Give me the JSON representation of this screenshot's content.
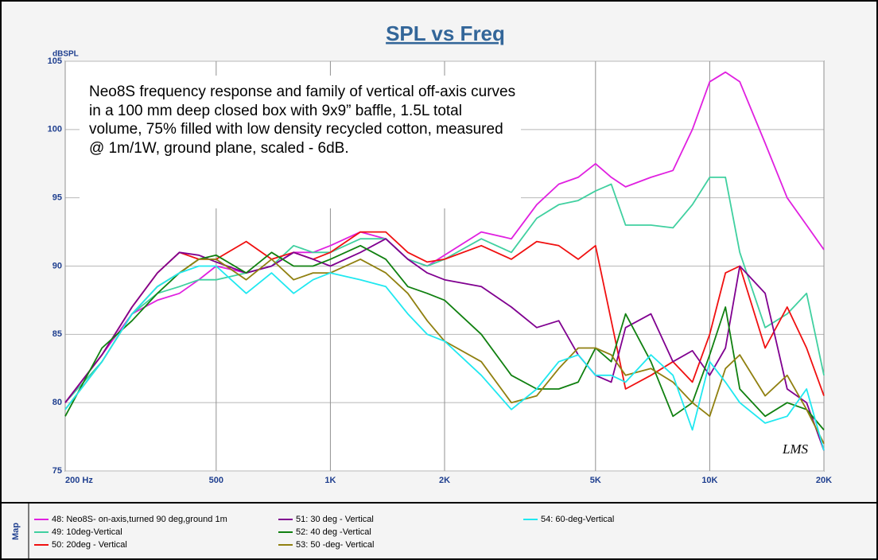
{
  "chart_data": {
    "type": "line",
    "title": "SPL vs Freq",
    "y_label": "dBSPL",
    "annotation": "Neo8S frequency response and family of vertical off-axis curves in a 100 mm deep closed box with 9x9” baffle, 1.5L total volume,  75% filled with low density recycled cotton, measured @ 1m/1W, ground plane, scaled  - 6dB.",
    "watermark": "LMS",
    "legend_title": "Map",
    "x_scale": "log",
    "grid": true,
    "xlim": [
      200,
      20000
    ],
    "xticks": [
      {
        "value": 200,
        "label": "200 Hz"
      },
      500,
      {
        "value": 1000,
        "label": "1K"
      },
      {
        "value": 2000,
        "label": "2K"
      },
      {
        "value": 5000,
        "label": "5K"
      },
      {
        "value": 10000,
        "label": "10K"
      },
      {
        "value": 20000,
        "label": "20K"
      }
    ],
    "ylim": [
      75,
      105
    ],
    "yticks": [
      75,
      80,
      85,
      90,
      95,
      100,
      105
    ],
    "x": [
      200,
      250,
      300,
      350,
      400,
      450,
      500,
      600,
      700,
      800,
      900,
      1000,
      1200,
      1400,
      1600,
      1800,
      2000,
      2500,
      3000,
      3500,
      4000,
      4500,
      5000,
      5500,
      6000,
      7000,
      8000,
      9000,
      10000,
      11000,
      12000,
      14000,
      16000,
      18000,
      20000
    ],
    "series": [
      {
        "name": "48: Neo8S- on-axis,turned 90 deg,ground 1m",
        "color": "#e020e0",
        "values": [
          80,
          83.5,
          86.5,
          87.5,
          88,
          89,
          90,
          89.5,
          90,
          91,
          91,
          91.5,
          92.5,
          92,
          90.5,
          90,
          90.8,
          92.5,
          92,
          94.5,
          96,
          96.5,
          97.5,
          96.5,
          95.8,
          96.5,
          97,
          100,
          103.5,
          104.2,
          103.5,
          99,
          95,
          93,
          91.2
        ]
      },
      {
        "name": "49: 10deg-Vertical",
        "color": "#40d0a0",
        "values": [
          80,
          83,
          86.5,
          88,
          88.5,
          89,
          89,
          89.5,
          90,
          91.5,
          91,
          91,
          92,
          92,
          90.5,
          90,
          90.5,
          92,
          91,
          93.5,
          94.5,
          94.8,
          95.5,
          96,
          93,
          93,
          92.8,
          94.5,
          96.5,
          96.5,
          91,
          85.5,
          86.5,
          88,
          82
        ]
      },
      {
        "name": "50: 20deg - Vertical",
        "color": "#f01010",
        "values": [
          80,
          83.5,
          87,
          89.5,
          91,
          90.5,
          90.5,
          91.8,
          90.5,
          91,
          90.5,
          91,
          92.5,
          92.5,
          91,
          90.3,
          90.5,
          91.5,
          90.5,
          91.8,
          91.5,
          90.5,
          91.5,
          86,
          81,
          82,
          83,
          81.5,
          85,
          89.5,
          90,
          84,
          87,
          84,
          80.5
        ]
      },
      {
        "name": "51: 30 deg - Vertical",
        "color": "#800090",
        "values": [
          80,
          83.5,
          87,
          89.5,
          91,
          90.8,
          90.3,
          89.5,
          90,
          91,
          90.5,
          90,
          91,
          92,
          90.5,
          89.5,
          89,
          88.5,
          87,
          85.5,
          86,
          83.5,
          82,
          81.5,
          85.5,
          86.5,
          83,
          83.8,
          82,
          84,
          90,
          88,
          81,
          80,
          76.5
        ]
      },
      {
        "name": "52: 40 deg -Vertical",
        "color": "#108010",
        "values": [
          79,
          84,
          86,
          88,
          89.5,
          90.5,
          90.8,
          89.5,
          91,
          90,
          90,
          90.5,
          91.5,
          90.5,
          88.5,
          88,
          87.5,
          85,
          82,
          81,
          81,
          81.5,
          84,
          83,
          86.5,
          83,
          79,
          80,
          83.5,
          87,
          81,
          79,
          80,
          79.5,
          78
        ]
      },
      {
        "name": "53: 50 -deg- Vertical",
        "color": "#908010",
        "values": [
          79.5,
          83,
          86.5,
          88.5,
          89.5,
          90.5,
          90.5,
          89,
          90.5,
          89,
          89.5,
          89.5,
          90.5,
          89.5,
          88,
          86,
          84.5,
          83,
          80,
          80.5,
          82.5,
          84,
          84,
          83.5,
          82,
          82.5,
          81.5,
          80,
          79,
          82.5,
          83.5,
          80.5,
          82,
          79.5,
          77
        ]
      },
      {
        "name": "54: 60-deg-Vertical",
        "color": "#20e8f0",
        "values": [
          79.5,
          83,
          86.5,
          88.5,
          89.5,
          90,
          90,
          88,
          89.5,
          88,
          89,
          89.5,
          89,
          88.5,
          86.5,
          85,
          84.5,
          82,
          79.5,
          81,
          83,
          83.5,
          82,
          82,
          81.5,
          83.5,
          82,
          78,
          83,
          81.5,
          80,
          78.5,
          79,
          81,
          76.5
        ]
      }
    ]
  }
}
